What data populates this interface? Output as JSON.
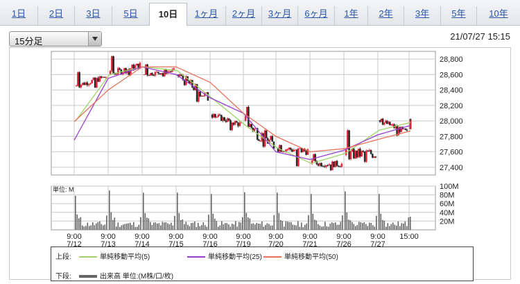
{
  "tabs": [
    {
      "label": "1日",
      "active": false
    },
    {
      "label": "2日",
      "active": false
    },
    {
      "label": "3日",
      "active": false
    },
    {
      "label": "5日",
      "active": false
    },
    {
      "label": "10日",
      "active": true
    },
    {
      "label": "1ヶ月",
      "active": false
    },
    {
      "label": "2ヶ月",
      "active": false
    },
    {
      "label": "3ヶ月",
      "active": false
    },
    {
      "label": "6ヶ月",
      "active": false
    },
    {
      "label": "1年",
      "active": false
    },
    {
      "label": "2年",
      "active": false
    },
    {
      "label": "3年",
      "active": false
    },
    {
      "label": "5年",
      "active": false
    },
    {
      "label": "10年",
      "active": false
    }
  ],
  "interval_select": {
    "selected": "15分足"
  },
  "timestamp": "21/07/27 15:15",
  "legend": {
    "upper_label": "上段:",
    "lower_label": "下段:",
    "ma5": "単純移動平均(5)",
    "ma25": "単純移動平均(25)",
    "ma50": "単純移動平均(50)",
    "volume": "出来高 単位:(M株/口/枚)"
  },
  "colors": {
    "up": "#e8253a",
    "down": "#2b2b2b",
    "ma5": "#9fd36a",
    "ma25": "#9a3fd1",
    "ma50": "#e6735a",
    "volume": "#666666",
    "grid": "#c8c8c8"
  },
  "chart_data": [
    {
      "type": "candlestick",
      "ylim": [
        27300,
        28900
      ],
      "yticks": [
        27400,
        27600,
        27800,
        28000,
        28200,
        28400,
        28600,
        28800
      ],
      "ytick_labels": [
        "27,400",
        "27,600",
        "27,800",
        "28,000",
        "28,200",
        "28,400",
        "28,600",
        "28,800"
      ],
      "x_labels": [
        {
          "time": "9:00",
          "date": "7/12"
        },
        {
          "time": "9:00",
          "date": "7/13"
        },
        {
          "time": "9:00",
          "date": "7/14"
        },
        {
          "time": "9:00",
          "date": "7/15"
        },
        {
          "time": "9:00",
          "date": "7/16"
        },
        {
          "time": "9:00",
          "date": "7/19"
        },
        {
          "time": "9:00",
          "date": "7/20"
        },
        {
          "time": "9:00",
          "date": "7/21"
        },
        {
          "time": "9:00",
          "date": "7/26"
        },
        {
          "time": "9:00",
          "date": "7/27"
        },
        {
          "time": "15:00",
          "date": ""
        }
      ],
      "grid": true,
      "sessions": [
        {
          "date": "7/12",
          "open": 28450,
          "close": 28570,
          "high": 28640,
          "low": 28420
        },
        {
          "date": "7/13",
          "open": 28600,
          "close": 28720,
          "high": 28850,
          "low": 28580
        },
        {
          "date": "7/14",
          "open": 28600,
          "close": 28650,
          "high": 28740,
          "low": 28570
        },
        {
          "date": "7/15",
          "open": 28600,
          "close": 28300,
          "high": 28620,
          "low": 28230
        },
        {
          "date": "7/16",
          "open": 28080,
          "close": 27950,
          "high": 28100,
          "low": 27870
        },
        {
          "date": "7/19",
          "open": 28000,
          "close": 27680,
          "high": 28210,
          "low": 27640
        },
        {
          "date": "7/20",
          "open": 27650,
          "close": 27610,
          "high": 27700,
          "low": 27400
        },
        {
          "date": "7/21",
          "open": 27450,
          "close": 27440,
          "high": 27580,
          "low": 27350
        },
        {
          "date": "7/26",
          "open": 27560,
          "close": 27580,
          "high": 27900,
          "low": 27450
        },
        {
          "date": "7/27",
          "open": 28010,
          "close": 27850,
          "high": 28040,
          "low": 27800
        },
        {
          "date": "7/27 pm",
          "open": 27900,
          "close": 27980,
          "high": 28030,
          "low": 27900
        }
      ],
      "moving_averages": [
        {
          "name": "単純移動平均(5)",
          "values": [
            28000,
            28600,
            28700,
            28650,
            28300,
            27950,
            27650,
            27450,
            27580,
            27880,
            27980
          ]
        },
        {
          "name": "単純移動平均(25)",
          "values": [
            27750,
            28550,
            28700,
            28600,
            28300,
            28100,
            27600,
            27500,
            27620,
            27820,
            27940
          ]
        },
        {
          "name": "単純移動平均(50)",
          "values": [
            27990,
            28400,
            28700,
            28700,
            28500,
            28100,
            27800,
            27600,
            27640,
            27760,
            27870
          ]
        }
      ]
    },
    {
      "type": "bar",
      "series_name": "出来高",
      "unit_label": "単位: M",
      "ylim": [
        0,
        100
      ],
      "yticks": [
        20,
        40,
        60,
        80,
        100
      ],
      "ytick_labels": [
        "20M",
        "40M",
        "60M",
        "80M",
        "100M"
      ],
      "session_peaks": [
        78,
        90,
        85,
        85,
        82,
        86,
        85,
        82,
        88,
        82,
        90
      ]
    }
  ]
}
